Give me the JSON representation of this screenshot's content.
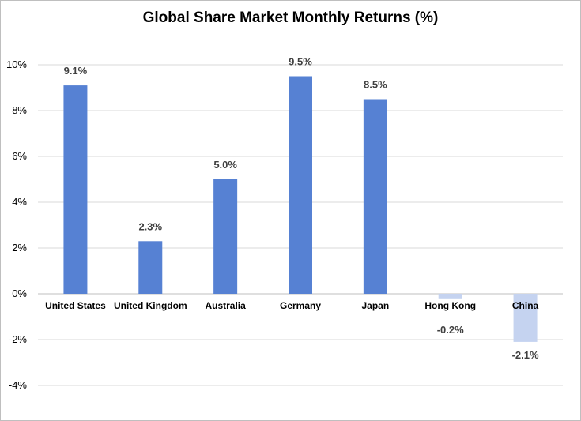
{
  "chart_data": {
    "type": "bar",
    "title": "Global Share Market Monthly Returns (%)",
    "xlabel": "",
    "ylabel": "",
    "categories": [
      "United States",
      "United Kingdom",
      "Australia",
      "Germany",
      "Japan",
      "Hong Kong",
      "China"
    ],
    "values": [
      9.1,
      2.3,
      5.0,
      9.5,
      8.5,
      -0.2,
      -2.1
    ],
    "data_labels": [
      "9.1%",
      "2.3%",
      "5.0%",
      "9.5%",
      "8.5%",
      "-0.2%",
      "-2.1%"
    ],
    "ylim": [
      -4,
      10
    ],
    "y_ticks": [
      {
        "value": 10,
        "label": "10%"
      },
      {
        "value": 8,
        "label": "8%"
      },
      {
        "value": 6,
        "label": "6%"
      },
      {
        "value": 4,
        "label": "4%"
      },
      {
        "value": 2,
        "label": "2%"
      },
      {
        "value": 0,
        "label": "0%"
      },
      {
        "value": -2,
        "label": "-2%"
      },
      {
        "value": -4,
        "label": "-4%"
      }
    ],
    "grid": true,
    "legend": "none",
    "colors": {
      "positive": "#5681d3",
      "negative": "#c5d3f0",
      "grid": "#d9d9d9",
      "axis": "#bfbfbf"
    }
  }
}
